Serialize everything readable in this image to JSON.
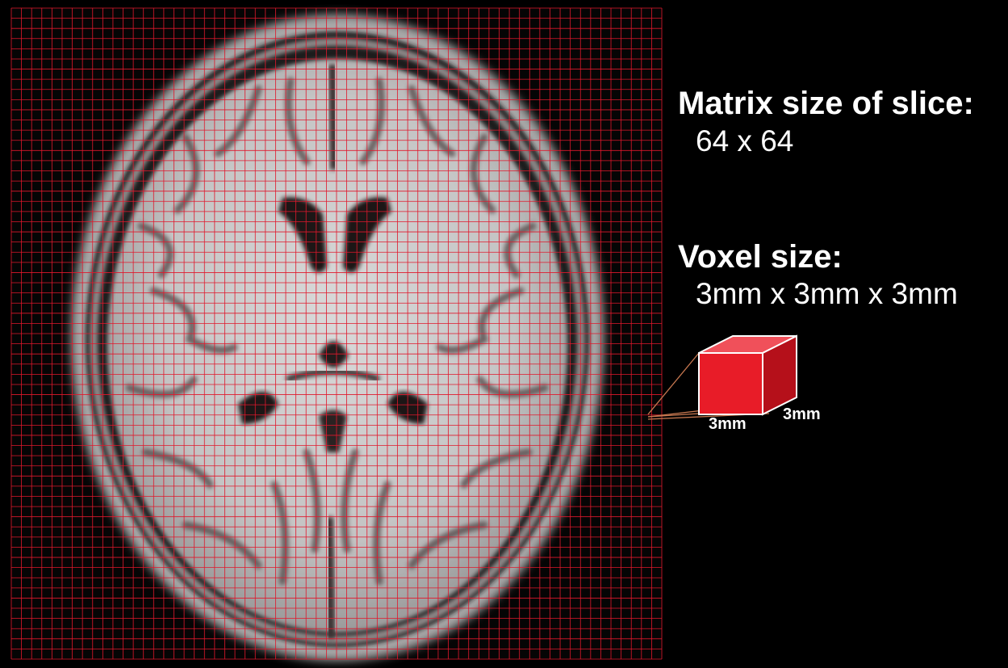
{
  "figure": {
    "matrix_heading": "Matrix size of slice:",
    "matrix_value": "64 x 64",
    "voxel_heading": "Voxel size:",
    "voxel_value": "3mm x 3mm x 3mm",
    "cube_dim_front": "3mm",
    "cube_dim_side": "3mm"
  },
  "grid": {
    "rows": 64,
    "cols": 64
  },
  "colors": {
    "background": "#000000",
    "grid_line": "#e0182c",
    "cube_front": "#e81c28",
    "cube_top": "#f0505a",
    "cube_side": "#b5101a",
    "text": "#ffffff"
  }
}
